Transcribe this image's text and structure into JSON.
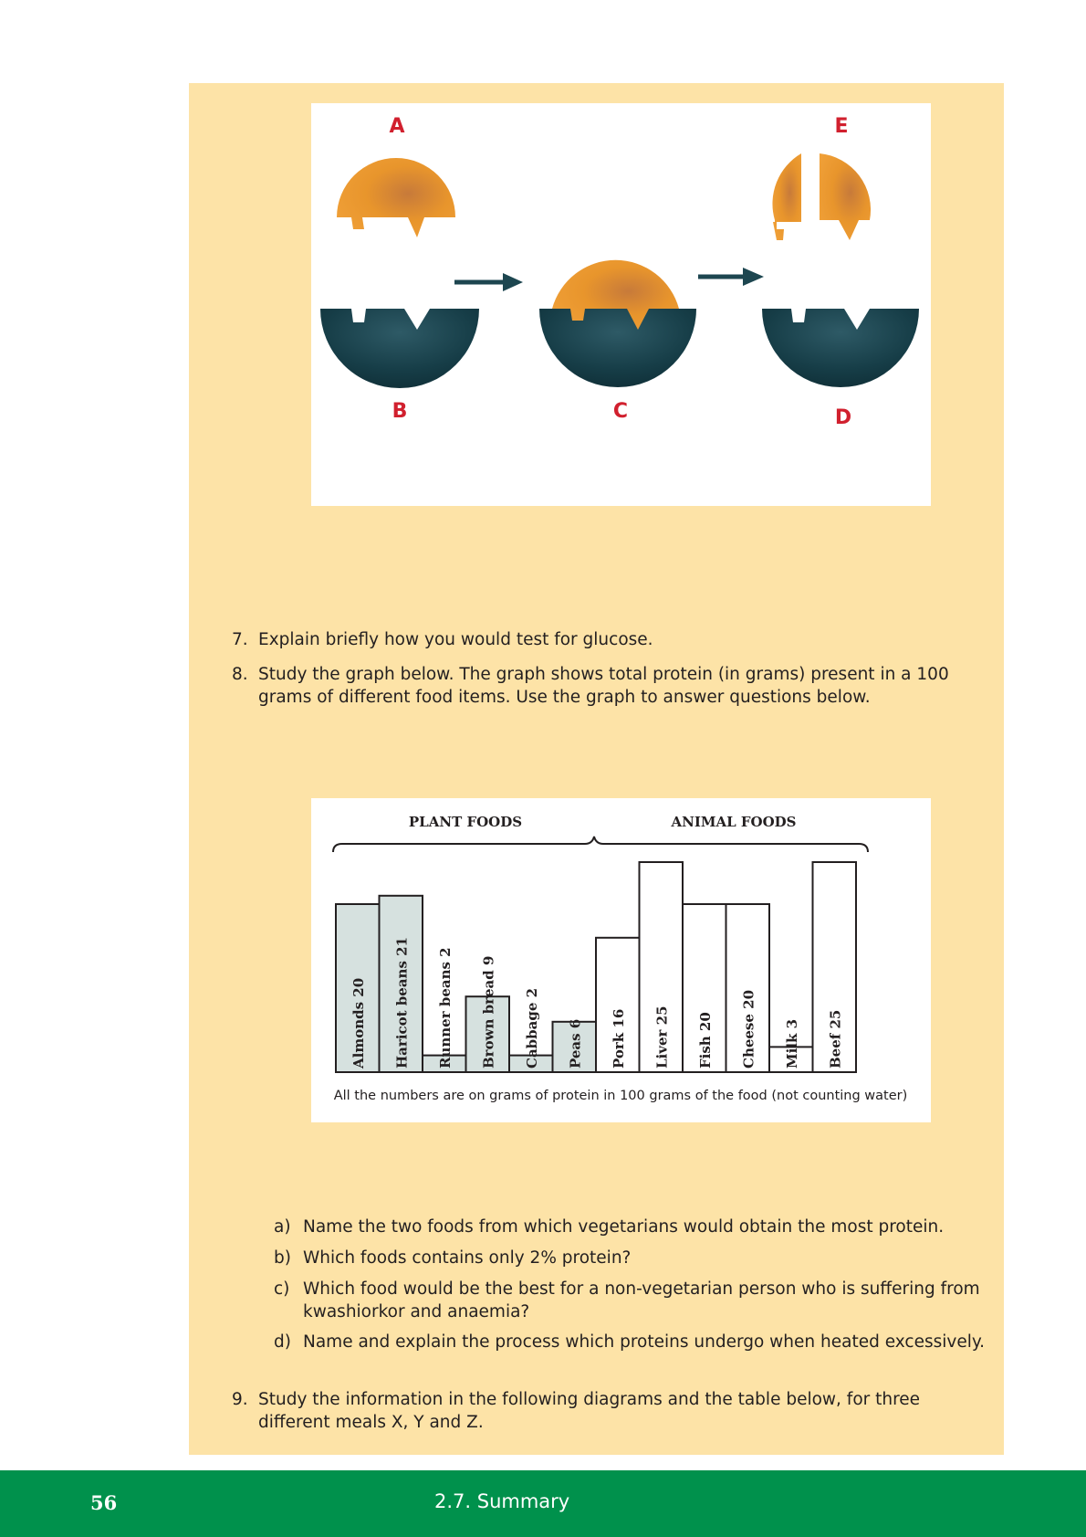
{
  "enzyme_figure": {
    "labels": {
      "a": "A",
      "b": "B",
      "c": "C",
      "d": "D",
      "e": "E"
    },
    "colors": {
      "substrate": "#e8952c",
      "enzyme": "#163d47",
      "label": "#d1202e",
      "arrow": "#1d4650"
    }
  },
  "questions": [
    {
      "num": "7.",
      "text": "Explain briefly how you would test for glucose."
    },
    {
      "num": "8.",
      "text": "Study the graph below. The graph shows total protein (in grams) present in a 100 grams of different food items. Use the graph to answer questions below."
    }
  ],
  "chart_data": {
    "type": "bar",
    "groups": [
      {
        "label": "PLANT FOODS",
        "color": "#d6e1df"
      },
      {
        "label": "ANIMAL FOODS",
        "color": "#ffffff"
      }
    ],
    "categories": [
      "Almonds 20",
      "Haricot beans 21",
      "Runner beans 2",
      "Brown bread 9",
      "Cabbage 2",
      "Peas 6",
      "Pork 16",
      "Liver 25",
      "Fish 20",
      "Cheese 20",
      "Milk 3",
      "Beef 25"
    ],
    "values": [
      20,
      21,
      2,
      9,
      2,
      6,
      16,
      25,
      20,
      20,
      3,
      25
    ],
    "group_index": [
      0,
      0,
      0,
      0,
      0,
      0,
      1,
      1,
      1,
      1,
      1,
      1
    ],
    "ylim": [
      0,
      25
    ],
    "note": "All the numbers are on grams of protein in 100 grams of the food (not counting water)"
  },
  "sub_questions": [
    {
      "num": "a)",
      "text": "Name the two foods from which vegetarians would obtain the most protein."
    },
    {
      "num": "b)",
      "text": "Which foods contains only 2% protein?"
    },
    {
      "num": "c)",
      "text": "Which food would be the best for a non-vegetarian person who is suffering from kwashiorkor and anaemia?"
    },
    {
      "num": "d)",
      "text": "Name and explain the process which proteins undergo when heated excessively."
    }
  ],
  "question_9": {
    "num": "9.",
    "text": "Study the information in the following diagrams and the table below, for three different meals X, Y and Z."
  },
  "footer": {
    "page_number": "56",
    "section": "2.7.   Summary"
  }
}
